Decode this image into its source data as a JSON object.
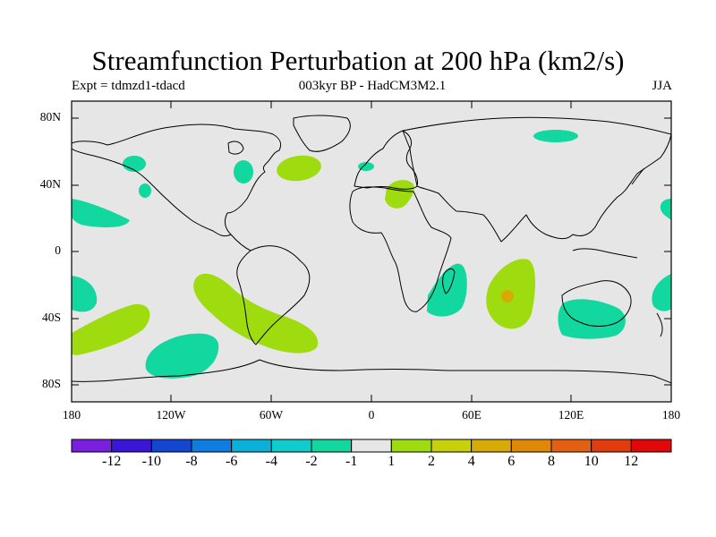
{
  "title": "Streamfunction Perturbation at 200 hPa (km2/s)",
  "experiment": "Expt = tdmzd1-tdacd",
  "period_model": "003kyr BP - HadCM3M2.1",
  "season": "JJA",
  "lat_ticks": [
    "80N",
    "40N",
    "0",
    "40S",
    "80S"
  ],
  "lon_ticks": [
    "180",
    "120W",
    "60W",
    "0",
    "60E",
    "120E",
    "180"
  ],
  "colorbar": {
    "colors": [
      "#7a1fe0",
      "#3b15d8",
      "#1446d0",
      "#0e7ce0",
      "#0ab0d8",
      "#10cccc",
      "#12d8a0",
      "#e6e6e6",
      "#9edc10",
      "#c8d00a",
      "#d8aa08",
      "#e08808",
      "#e26010",
      "#e03c10",
      "#e00808"
    ],
    "labels": [
      "-12",
      "-10",
      "-8",
      "-6",
      "-4",
      "-2",
      "-1",
      "1",
      "2",
      "4",
      "6",
      "8",
      "10",
      "12"
    ]
  },
  "colors": {
    "ocean": "#e6e6e6",
    "neg_1_2": "#12d8a0",
    "pos_1_2": "#9edc10",
    "pos_2_4": "#c8d00a",
    "pos_4_6": "#d8aa08"
  }
}
